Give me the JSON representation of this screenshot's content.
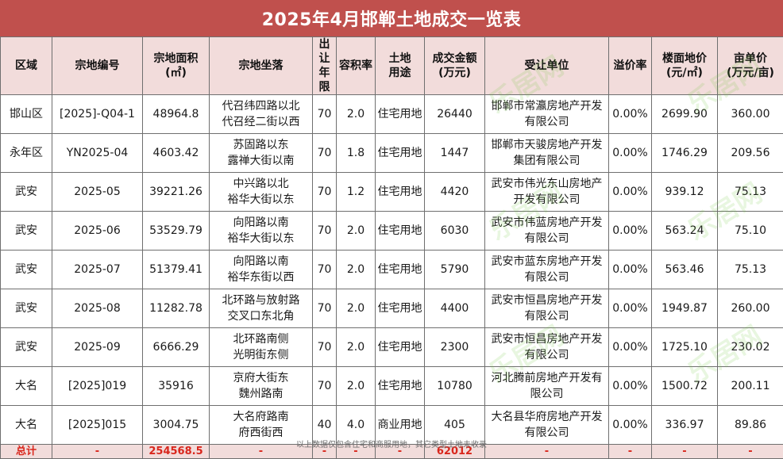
{
  "title": "2025年4月邯郸土地成交一览表",
  "headers": [
    {
      "l1": "区域",
      "l2": ""
    },
    {
      "l1": "宗地编号",
      "l2": ""
    },
    {
      "l1": "宗地面积",
      "l2": "(㎡)"
    },
    {
      "l1": "宗地坐落",
      "l2": ""
    },
    {
      "l1": "出让",
      "l2": "年限"
    },
    {
      "l1": "容积率",
      "l2": ""
    },
    {
      "l1": "土地",
      "l2": "用途"
    },
    {
      "l1": "成交金额",
      "l2": "(万元)"
    },
    {
      "l1": "受让单位",
      "l2": ""
    },
    {
      "l1": "溢价率",
      "l2": ""
    },
    {
      "l1": "楼面地价",
      "l2": "(元/㎡)"
    },
    {
      "l1": "亩单价",
      "l2": "(万元/亩)"
    }
  ],
  "rows": [
    {
      "region": "邯山区",
      "code": "[2025]-Q04-1",
      "area": "48964.8",
      "loc1": "代召纬四路以北",
      "loc2": "代召经二街以西",
      "years": "70",
      "far": "2.0",
      "use": "住宅用地",
      "amount": "26440",
      "buyer1": "邯郸市常瀛房地产开发",
      "buyer2": "有限公司",
      "premium": "0.00%",
      "floor_price": "2699.90",
      "mu_price": "360.00"
    },
    {
      "region": "永年区",
      "code": "YN2025-04",
      "area": "4603.42",
      "loc1": "苏固路以东",
      "loc2": "露禅大街以南",
      "years": "70",
      "far": "1.8",
      "use": "住宅用地",
      "amount": "1447",
      "buyer1": "邯郸市天骏房地产开发",
      "buyer2": "集团有限公司",
      "premium": "0.00%",
      "floor_price": "1746.29",
      "mu_price": "209.56"
    },
    {
      "region": "武安",
      "code": "2025-05",
      "area": "39221.26",
      "loc1": "中兴路以北",
      "loc2": "裕华大街以东",
      "years": "70",
      "far": "1.2",
      "use": "住宅用地",
      "amount": "4420",
      "buyer1": "武安市伟光东山房地产",
      "buyer2": "开发有限公司",
      "premium": "0.00%",
      "floor_price": "939.12",
      "mu_price": "75.13"
    },
    {
      "region": "武安",
      "code": "2025-06",
      "area": "53529.79",
      "loc1": "向阳路以南",
      "loc2": "裕华大街以东",
      "years": "70",
      "far": "2.0",
      "use": "住宅用地",
      "amount": "6030",
      "buyer1": "武安市伟蓝房地产开发",
      "buyer2": "有限公司",
      "premium": "0.00%",
      "floor_price": "563.24",
      "mu_price": "75.10"
    },
    {
      "region": "武安",
      "code": "2025-07",
      "area": "51379.41",
      "loc1": "向阳路以南",
      "loc2": "裕华东街以西",
      "years": "70",
      "far": "2.0",
      "use": "住宅用地",
      "amount": "5790",
      "buyer1": "武安市蓝东房地产开发",
      "buyer2": "有限公司",
      "premium": "0.00%",
      "floor_price": "563.46",
      "mu_price": "75.13"
    },
    {
      "region": "武安",
      "code": "2025-08",
      "area": "11282.78",
      "loc1": "北环路与放射路",
      "loc2": "交叉口东北角",
      "years": "70",
      "far": "2.0",
      "use": "住宅用地",
      "amount": "4400",
      "buyer1": "武安市恒昌房地产开发",
      "buyer2": "有限公司",
      "premium": "0.00%",
      "floor_price": "1949.87",
      "mu_price": "260.00"
    },
    {
      "region": "武安",
      "code": "2025-09",
      "area": "6666.29",
      "loc1": "北环路南侧",
      "loc2": "光明街东侧",
      "years": "70",
      "far": "2.0",
      "use": "住宅用地",
      "amount": "2300",
      "buyer1": "武安市恒昌房地产开发",
      "buyer2": "有限公司",
      "premium": "0.00%",
      "floor_price": "1725.10",
      "mu_price": "230.02"
    },
    {
      "region": "大名",
      "code": "[2025]019",
      "area": "35916",
      "loc1": "京府大街东",
      "loc2": "魏州路南",
      "years": "70",
      "far": "2.0",
      "use": "住宅用地",
      "amount": "10780",
      "buyer1": "河北腾前房地产开发有",
      "buyer2": "限公司",
      "premium": "0.00%",
      "floor_price": "1500.72",
      "mu_price": "200.11"
    },
    {
      "region": "大名",
      "code": "[2025]015",
      "area": "3004.75",
      "loc1": "大名府路南",
      "loc2": "府西街西",
      "years": "40",
      "far": "4.0",
      "use": "商业用地",
      "amount": "405",
      "buyer1": "大名县华府房地产开发",
      "buyer2": "有限公司",
      "premium": "0.00%",
      "floor_price": "336.97",
      "mu_price": "89.86"
    }
  ],
  "total": {
    "label": "总计",
    "code": "-",
    "area": "254568.5",
    "loc": "-",
    "years": "-",
    "far": "-",
    "use": "-",
    "amount": "62012",
    "buyer": "-",
    "premium": "-",
    "floor_price": "-",
    "mu_price": "-"
  },
  "footnote": "以上数据仅包含住宅和商服用地，其它类型土地未收录",
  "watermark": "乐居网",
  "colors": {
    "title_bg": "#c0504d",
    "header_bg": "#f2dcdb",
    "total_text": "#d9261c"
  }
}
